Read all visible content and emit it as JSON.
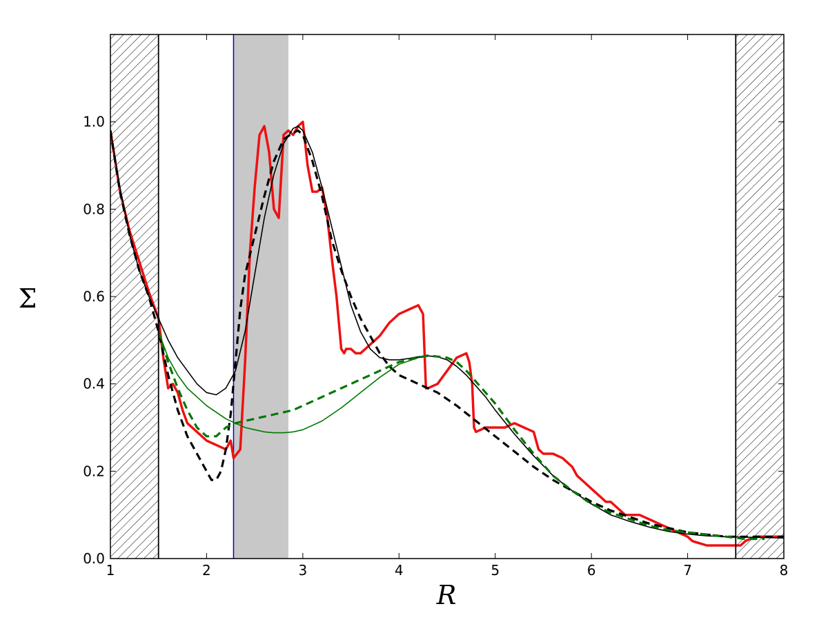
{
  "chart_data": {
    "type": "line",
    "title": "",
    "xlabel": "R",
    "ylabel": "Σ",
    "xlim": [
      1,
      8
    ],
    "ylim": [
      0,
      1.2
    ],
    "x_ticks": [
      1,
      2,
      3,
      4,
      5,
      6,
      7,
      8
    ],
    "y_ticks": [
      0.0,
      0.2,
      0.4,
      0.6,
      0.8,
      1.0
    ],
    "x_tick_labels": [
      "1",
      "2",
      "3",
      "4",
      "5",
      "6",
      "7",
      "8"
    ],
    "y_tick_labels": [
      "0.0",
      "0.2",
      "0.4",
      "0.6",
      "0.8",
      "1.0"
    ],
    "grid": false,
    "legend": "none",
    "hatched_regions": [
      [
        1.0,
        1.5
      ],
      [
        7.5,
        8.0
      ]
    ],
    "shaded_region": [
      2.28,
      2.85
    ],
    "vertical_line": 2.28,
    "colors": {
      "red": "#ee1111",
      "black": "#000000",
      "green": "#007700",
      "blue_line": "#0000cc",
      "shade": "#c8c8c8"
    },
    "series": [
      {
        "color": "red",
        "style": "solid",
        "width": 3.5,
        "x": [
          1.0,
          1.1,
          1.2,
          1.3,
          1.4,
          1.5,
          1.55,
          1.6,
          1.65,
          1.7,
          1.75,
          1.8,
          1.9,
          2.0,
          2.1,
          2.2,
          2.25,
          2.28,
          2.35,
          2.4,
          2.45,
          2.5,
          2.55,
          2.6,
          2.65,
          2.7,
          2.75,
          2.8,
          2.85,
          2.9,
          2.95,
          3.0,
          3.05,
          3.1,
          3.15,
          3.2,
          3.25,
          3.3,
          3.35,
          3.4,
          3.43,
          3.45,
          3.5,
          3.55,
          3.6,
          3.7,
          3.8,
          3.9,
          4.0,
          4.1,
          4.2,
          4.25,
          4.28,
          4.3,
          4.4,
          4.5,
          4.6,
          4.7,
          4.73,
          4.76,
          4.78,
          4.8,
          4.9,
          5.0,
          5.1,
          5.2,
          5.3,
          5.4,
          5.45,
          5.5,
          5.6,
          5.7,
          5.8,
          5.85,
          5.9,
          6.0,
          6.1,
          6.15,
          6.2,
          6.3,
          6.35,
          6.4,
          6.5,
          6.6,
          6.7,
          6.8,
          6.9,
          7.0,
          7.05,
          7.2,
          7.3,
          7.4,
          7.5,
          7.55,
          7.6,
          7.7,
          7.8,
          8.0
        ],
        "y": [
          0.98,
          0.84,
          0.75,
          0.68,
          0.61,
          0.55,
          0.46,
          0.39,
          0.4,
          0.38,
          0.34,
          0.31,
          0.29,
          0.27,
          0.26,
          0.25,
          0.27,
          0.23,
          0.25,
          0.45,
          0.7,
          0.85,
          0.97,
          0.99,
          0.93,
          0.8,
          0.78,
          0.97,
          0.98,
          0.97,
          0.99,
          1.0,
          0.9,
          0.84,
          0.84,
          0.85,
          0.79,
          0.69,
          0.6,
          0.48,
          0.47,
          0.48,
          0.48,
          0.47,
          0.47,
          0.49,
          0.51,
          0.54,
          0.56,
          0.57,
          0.58,
          0.56,
          0.39,
          0.39,
          0.4,
          0.43,
          0.46,
          0.47,
          0.45,
          0.4,
          0.3,
          0.29,
          0.3,
          0.3,
          0.3,
          0.31,
          0.3,
          0.29,
          0.25,
          0.24,
          0.24,
          0.23,
          0.21,
          0.19,
          0.18,
          0.16,
          0.14,
          0.13,
          0.13,
          0.11,
          0.1,
          0.1,
          0.1,
          0.09,
          0.08,
          0.07,
          0.06,
          0.05,
          0.04,
          0.03,
          0.03,
          0.03,
          0.03,
          0.03,
          0.04,
          0.05,
          0.05,
          0.05
        ]
      },
      {
        "color": "black",
        "style": "solid",
        "width": 1.6,
        "x": [
          1.0,
          1.1,
          1.2,
          1.3,
          1.4,
          1.5,
          1.6,
          1.7,
          1.8,
          1.9,
          2.0,
          2.1,
          2.2,
          2.3,
          2.4,
          2.5,
          2.6,
          2.7,
          2.8,
          2.9,
          2.95,
          3.0,
          3.1,
          3.2,
          3.3,
          3.4,
          3.5,
          3.6,
          3.7,
          3.8,
          3.9,
          4.0,
          4.1,
          4.2,
          4.3,
          4.4,
          4.5,
          4.6,
          4.7,
          4.8,
          4.9,
          5.0,
          5.2,
          5.4,
          5.6,
          5.8,
          6.0,
          6.2,
          6.4,
          6.6,
          6.8,
          7.0,
          7.2,
          7.4,
          7.6,
          7.8,
          8.0
        ],
        "y": [
          0.98,
          0.85,
          0.74,
          0.66,
          0.6,
          0.55,
          0.5,
          0.46,
          0.43,
          0.4,
          0.38,
          0.375,
          0.39,
          0.43,
          0.52,
          0.65,
          0.78,
          0.88,
          0.95,
          0.985,
          0.99,
          0.98,
          0.93,
          0.85,
          0.76,
          0.67,
          0.58,
          0.52,
          0.48,
          0.46,
          0.455,
          0.455,
          0.458,
          0.462,
          0.464,
          0.462,
          0.455,
          0.44,
          0.42,
          0.395,
          0.37,
          0.34,
          0.285,
          0.235,
          0.19,
          0.155,
          0.125,
          0.1,
          0.085,
          0.072,
          0.062,
          0.056,
          0.052,
          0.05,
          0.049,
          0.048,
          0.047
        ]
      },
      {
        "color": "black",
        "style": "dashed",
        "width": 3.2,
        "x": [
          1.0,
          1.1,
          1.2,
          1.3,
          1.4,
          1.5,
          1.6,
          1.7,
          1.8,
          1.9,
          2.0,
          2.05,
          2.1,
          2.15,
          2.2,
          2.25,
          2.3,
          2.35,
          2.4,
          2.5,
          2.6,
          2.7,
          2.8,
          2.9,
          2.95,
          3.0,
          3.1,
          3.2,
          3.3,
          3.4,
          3.5,
          3.6,
          3.7,
          3.8,
          3.9,
          4.0,
          4.2,
          4.4,
          4.6,
          4.8,
          5.0,
          5.2,
          5.4,
          5.6,
          5.8,
          6.0,
          6.2,
          6.4,
          6.6,
          6.8,
          7.0,
          7.2,
          7.4,
          7.6,
          7.8,
          8.0
        ],
        "y": [
          0.98,
          0.84,
          0.74,
          0.66,
          0.6,
          0.52,
          0.42,
          0.34,
          0.28,
          0.24,
          0.2,
          0.18,
          0.18,
          0.2,
          0.25,
          0.33,
          0.45,
          0.57,
          0.65,
          0.74,
          0.83,
          0.91,
          0.96,
          0.975,
          0.98,
          0.97,
          0.91,
          0.83,
          0.73,
          0.66,
          0.6,
          0.55,
          0.51,
          0.47,
          0.44,
          0.42,
          0.4,
          0.38,
          0.35,
          0.315,
          0.28,
          0.245,
          0.21,
          0.18,
          0.155,
          0.13,
          0.11,
          0.095,
          0.08,
          0.07,
          0.06,
          0.055,
          0.05,
          0.05,
          0.05,
          0.05
        ]
      },
      {
        "color": "green",
        "style": "solid",
        "width": 1.6,
        "x": [
          1.5,
          1.6,
          1.7,
          1.8,
          1.9,
          2.0,
          2.1,
          2.2,
          2.3,
          2.4,
          2.5,
          2.6,
          2.7,
          2.8,
          2.9,
          3.0,
          3.2,
          3.4,
          3.6,
          3.8,
          4.0,
          4.2,
          4.3
        ],
        "y": [
          0.52,
          0.46,
          0.42,
          0.39,
          0.37,
          0.35,
          0.335,
          0.32,
          0.31,
          0.3,
          0.295,
          0.29,
          0.288,
          0.288,
          0.29,
          0.295,
          0.315,
          0.345,
          0.38,
          0.415,
          0.445,
          0.46,
          0.463
        ]
      },
      {
        "color": "green",
        "style": "dashed",
        "width": 3.2,
        "x": [
          1.5,
          1.6,
          1.7,
          1.8,
          1.9,
          2.0,
          2.1,
          2.2,
          2.3,
          2.5,
          2.7,
          2.9,
          3.0,
          3.2,
          3.4,
          3.6,
          3.8,
          4.0,
          4.2,
          4.3,
          4.5,
          4.6,
          4.7,
          4.8,
          5.0,
          5.2,
          5.4,
          5.6,
          5.8,
          6.0,
          6.2,
          6.4,
          6.6,
          6.8,
          7.0,
          7.2,
          7.4,
          7.6,
          7.8
        ],
        "y": [
          0.52,
          0.45,
          0.39,
          0.34,
          0.3,
          0.28,
          0.28,
          0.3,
          0.31,
          0.32,
          0.33,
          0.34,
          0.35,
          0.37,
          0.39,
          0.41,
          0.43,
          0.45,
          0.46,
          0.465,
          0.46,
          0.45,
          0.43,
          0.405,
          0.355,
          0.295,
          0.24,
          0.19,
          0.155,
          0.125,
          0.105,
          0.09,
          0.075,
          0.065,
          0.06,
          0.055,
          0.05,
          0.045,
          0.045
        ]
      }
    ]
  }
}
